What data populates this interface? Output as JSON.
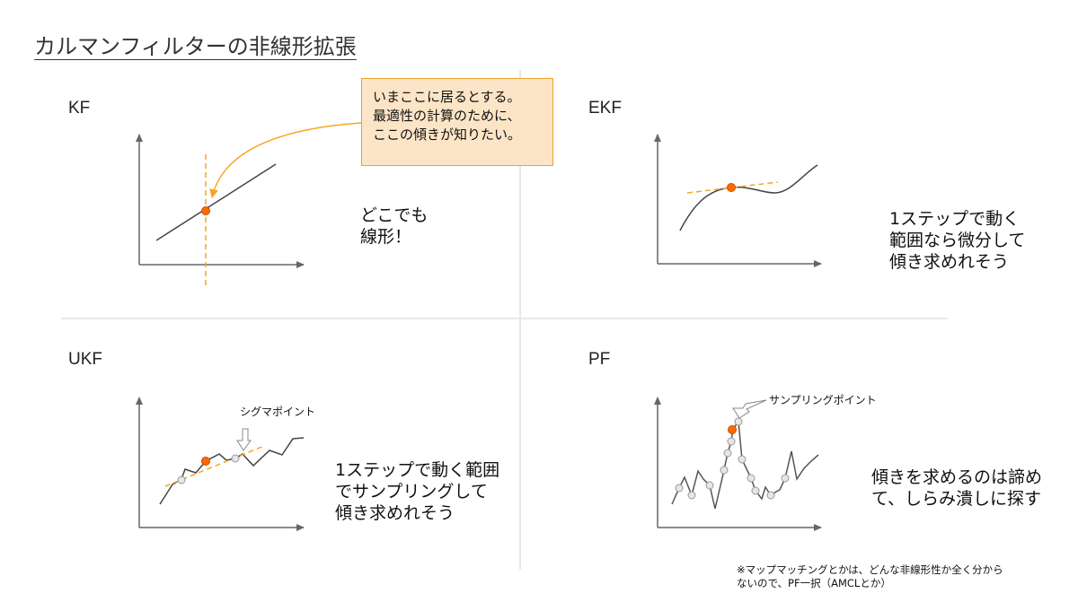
{
  "title": "カルマンフィルターの非線形拡張",
  "accent_color": "#f5a623",
  "point_color": "#ff6a00",
  "quadrants": {
    "kf": {
      "label": "KF",
      "description": "どこでも\n線形！"
    },
    "ekf": {
      "label": "EKF",
      "description": "1ステップで動く\n範囲なら微分して\n傾き求めれそう"
    },
    "ukf": {
      "label": "UKF",
      "description": "1ステップで動く範囲\nでサンプリングして\n傾き求めれそう",
      "annotation": "シグマポイント"
    },
    "pf": {
      "label": "PF",
      "description": "傾きを求めるのは諦め\nて、しらみ潰しに探す",
      "annotation": "サンプリングポイント"
    }
  },
  "callout": "いまここに居るとする。\n最適性の計算のために、\nここの傾きが知りたい。",
  "footnote": "※マップマッチングとかは、どんな非線形性か全く分から\nないので、PF一択（AMCLとか）"
}
